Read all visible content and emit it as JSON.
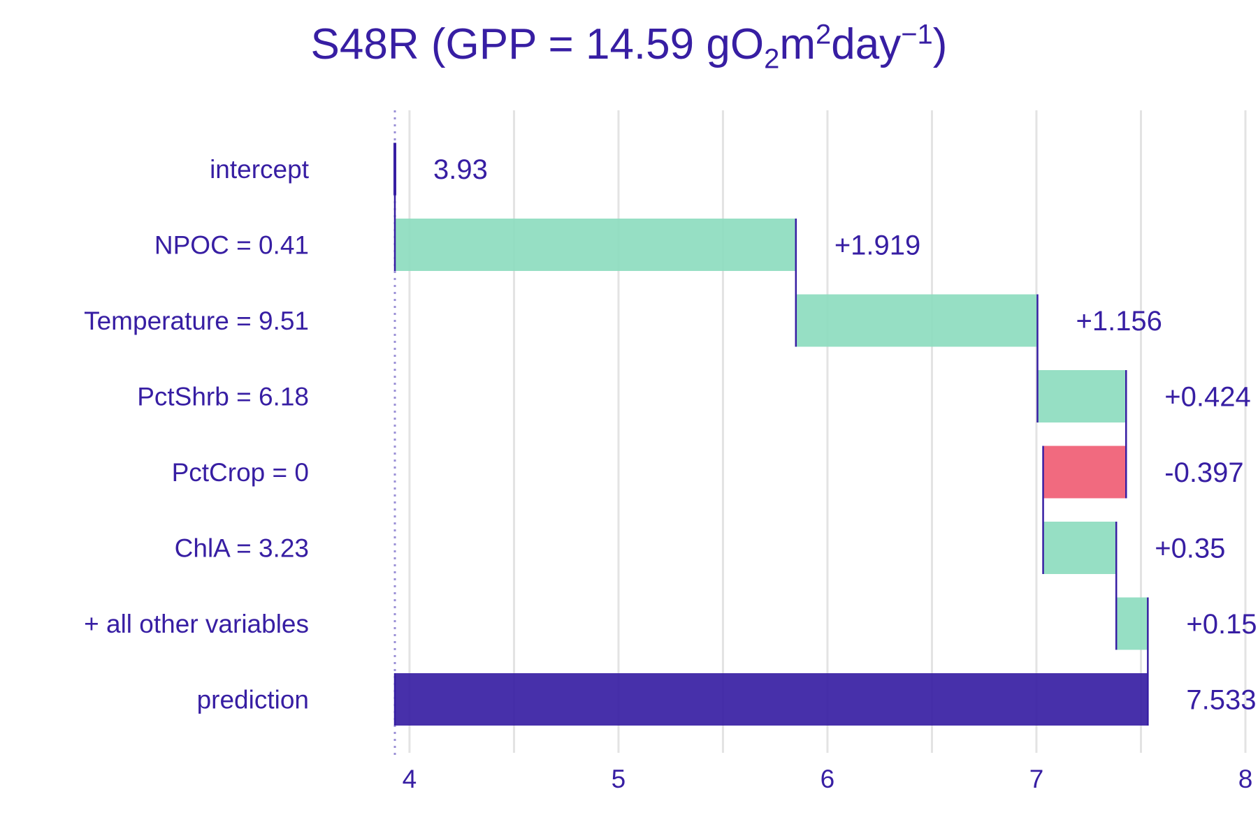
{
  "title": {
    "prefix": "S48R (GPP = 14.59 gO",
    "sub": "2",
    "mid": "m",
    "sup1": "2",
    "mid2": "day",
    "sup2": "−1",
    "suffix": ")"
  },
  "colors": {
    "positive": "#8bdcbe",
    "negative": "#f05a71",
    "prediction": "#371ea3",
    "text": "#371ea3",
    "grid": "#e3e3e3"
  },
  "chart_data": {
    "type": "bar",
    "subtype": "waterfall",
    "title": "S48R (GPP = 14.59 gO2m2day−1)",
    "xlim": [
      3.93,
      8.0
    ],
    "xticks": [
      4,
      5,
      6,
      7,
      8
    ],
    "xtick_labels": [
      "4",
      "5",
      "6",
      "7",
      "8"
    ],
    "grid": true,
    "baseline": 3.93,
    "rows": [
      {
        "label": "intercept",
        "start": 3.93,
        "end": 3.93,
        "kind": "intercept",
        "value_label": "3.93"
      },
      {
        "label": "NPOC = 0.41",
        "start": 3.93,
        "end": 5.849,
        "kind": "positive",
        "value_label": "+1.919"
      },
      {
        "label": "Temperature = 9.51",
        "start": 5.849,
        "end": 7.005,
        "kind": "positive",
        "value_label": "+1.156"
      },
      {
        "label": "PctShrb = 6.18",
        "start": 7.005,
        "end": 7.429,
        "kind": "positive",
        "value_label": "+0.424"
      },
      {
        "label": "PctCrop = 0",
        "start": 7.429,
        "end": 7.032,
        "kind": "negative",
        "value_label": "-0.397"
      },
      {
        "label": "ChlA = 3.23",
        "start": 7.032,
        "end": 7.382,
        "kind": "positive",
        "value_label": "+0.35"
      },
      {
        "label": "+ all other variables",
        "start": 7.382,
        "end": 7.533,
        "kind": "positive",
        "value_label": "+0.15"
      },
      {
        "label": "prediction",
        "start": 3.93,
        "end": 7.533,
        "kind": "prediction",
        "value_label": "7.533"
      }
    ]
  }
}
